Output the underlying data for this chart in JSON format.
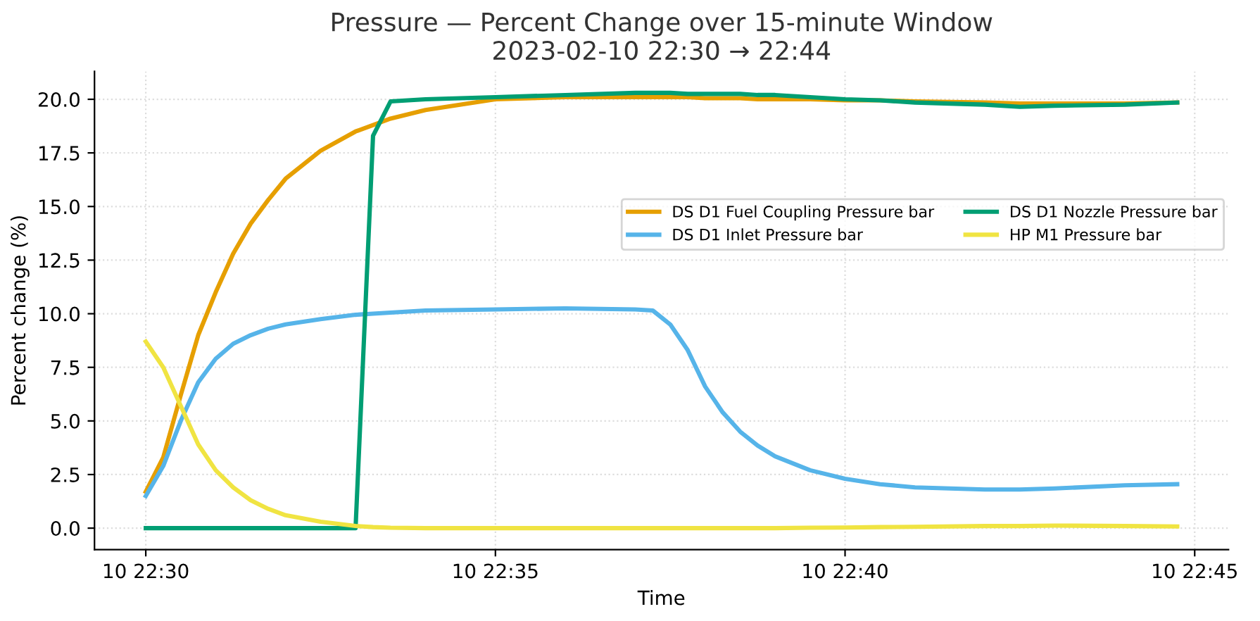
{
  "chart_data": {
    "type": "line",
    "title": "Pressure — Percent Change over 15-minute Window",
    "subtitle": "2023-02-10 22:30 → 22:44",
    "xlabel": "Time",
    "ylabel": "Percent change (%)",
    "x": [
      "2023-02-10T22:30:00",
      "2023-02-10T22:30:15",
      "2023-02-10T22:30:30",
      "2023-02-10T22:30:45",
      "2023-02-10T22:31:00",
      "2023-02-10T22:31:15",
      "2023-02-10T22:31:30",
      "2023-02-10T22:31:45",
      "2023-02-10T22:32:00",
      "2023-02-10T22:32:30",
      "2023-02-10T22:33:00",
      "2023-02-10T22:33:15",
      "2023-02-10T22:33:30",
      "2023-02-10T22:34:00",
      "2023-02-10T22:35:00",
      "2023-02-10T22:36:00",
      "2023-02-10T22:37:00",
      "2023-02-10T22:37:15",
      "2023-02-10T22:37:30",
      "2023-02-10T22:37:45",
      "2023-02-10T22:38:00",
      "2023-02-10T22:38:15",
      "2023-02-10T22:38:30",
      "2023-02-10T22:38:45",
      "2023-02-10T22:39:00",
      "2023-02-10T22:39:30",
      "2023-02-10T22:40:00",
      "2023-02-10T22:40:30",
      "2023-02-10T22:41:00",
      "2023-02-10T22:42:00",
      "2023-02-10T22:42:30",
      "2023-02-10T22:43:00",
      "2023-02-10T22:44:00",
      "2023-02-10T22:44:45"
    ],
    "series": [
      {
        "name": "DS D1 Fuel Coupling Pressure bar",
        "color": "#e69f00",
        "values": [
          1.7,
          3.3,
          6.2,
          9.0,
          11.0,
          12.8,
          14.2,
          15.3,
          16.3,
          17.6,
          18.5,
          18.8,
          19.1,
          19.5,
          20.0,
          20.1,
          20.1,
          20.1,
          20.1,
          20.1,
          20.05,
          20.05,
          20.05,
          20.0,
          20.0,
          20.0,
          19.95,
          19.95,
          19.9,
          19.85,
          19.8,
          19.8,
          19.8,
          19.85
        ]
      },
      {
        "name": "DS D1 Inlet Pressure bar",
        "color": "#56b4e9",
        "values": [
          1.5,
          2.9,
          5.0,
          6.8,
          7.9,
          8.6,
          9.0,
          9.3,
          9.5,
          9.75,
          9.95,
          10.0,
          10.05,
          10.15,
          10.2,
          10.25,
          10.2,
          10.15,
          9.5,
          8.3,
          6.6,
          5.4,
          4.5,
          3.85,
          3.35,
          2.7,
          2.3,
          2.05,
          1.9,
          1.8,
          1.8,
          1.85,
          2.0,
          2.05
        ]
      },
      {
        "name": "DS D1 Nozzle Pressure bar",
        "color": "#009e73",
        "values": [
          0,
          0,
          0,
          0,
          0,
          0,
          0,
          0,
          0,
          0,
          0,
          18.3,
          19.9,
          20.0,
          20.1,
          20.2,
          20.3,
          20.3,
          20.3,
          20.25,
          20.25,
          20.25,
          20.25,
          20.2,
          20.2,
          20.1,
          20.0,
          19.95,
          19.85,
          19.75,
          19.65,
          19.7,
          19.75,
          19.85
        ]
      },
      {
        "name": "HP M1 Pressure bar",
        "color": "#f0e442",
        "values": [
          8.7,
          7.5,
          5.7,
          3.9,
          2.7,
          1.9,
          1.3,
          0.9,
          0.6,
          0.3,
          0.1,
          0.05,
          0.02,
          0,
          0,
          0,
          0,
          0,
          0,
          0,
          0,
          0,
          0,
          0,
          0,
          0.02,
          0.03,
          0.05,
          0.06,
          0.1,
          0.1,
          0.12,
          0.1,
          0.08
        ]
      }
    ],
    "xlim": [
      "2023-02-10T22:29:16",
      "2023-02-10T22:45:29"
    ],
    "xticks": [
      {
        "value": "2023-02-10T22:30",
        "label": "10 22:30"
      },
      {
        "value": "2023-02-10T22:35",
        "label": "10 22:35"
      },
      {
        "value": "2023-02-10T22:40",
        "label": "10 22:40"
      },
      {
        "value": "2023-02-10T22:45",
        "label": "10 22:45"
      }
    ],
    "ylim": [
      -1.0,
      21.3
    ],
    "yticks": [
      {
        "value": 0,
        "label": "0.0"
      },
      {
        "value": 2.5,
        "label": "2.5"
      },
      {
        "value": 5,
        "label": "5.0"
      },
      {
        "value": 7.5,
        "label": "7.5"
      },
      {
        "value": 10,
        "label": "10.0"
      },
      {
        "value": 12.5,
        "label": "12.5"
      },
      {
        "value": 15,
        "label": "15.0"
      },
      {
        "value": 17.5,
        "label": "17.5"
      },
      {
        "value": 20,
        "label": "20.0"
      }
    ],
    "grid": true,
    "legend": "right",
    "marker": "none",
    "line_style": "solid"
  }
}
